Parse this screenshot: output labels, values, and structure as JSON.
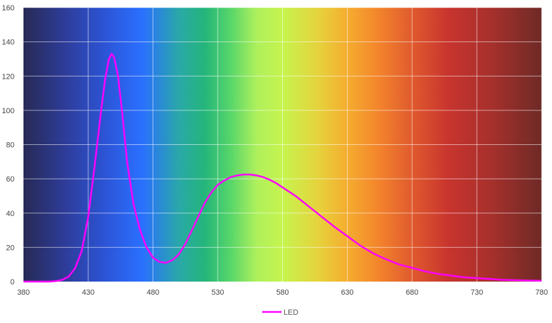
{
  "chart_data": {
    "type": "line",
    "title": "",
    "xlabel": "",
    "ylabel": "",
    "xlim": [
      380,
      780
    ],
    "ylim": [
      0,
      160
    ],
    "x_ticks": [
      380,
      430,
      480,
      530,
      580,
      630,
      680,
      730,
      780
    ],
    "y_ticks": [
      0,
      20,
      40,
      60,
      80,
      100,
      120,
      140,
      160
    ],
    "grid": true,
    "background": "visible-spectrum-gradient",
    "legend_position": "bottom-center",
    "series": [
      {
        "name": "LED",
        "color": "#ff00ff",
        "points": [
          [
            380,
            0
          ],
          [
            390,
            0
          ],
          [
            400,
            0
          ],
          [
            405,
            0.3
          ],
          [
            410,
            1
          ],
          [
            415,
            3
          ],
          [
            420,
            8
          ],
          [
            425,
            18
          ],
          [
            430,
            38
          ],
          [
            435,
            68
          ],
          [
            440,
            100
          ],
          [
            443,
            118
          ],
          [
            446,
            130
          ],
          [
            448,
            133
          ],
          [
            450,
            131
          ],
          [
            453,
            120
          ],
          [
            456,
            100
          ],
          [
            460,
            70
          ],
          [
            465,
            45
          ],
          [
            470,
            30
          ],
          [
            475,
            20
          ],
          [
            480,
            14
          ],
          [
            485,
            11.5
          ],
          [
            490,
            11
          ],
          [
            495,
            12.5
          ],
          [
            500,
            16
          ],
          [
            505,
            22
          ],
          [
            510,
            30
          ],
          [
            515,
            38
          ],
          [
            520,
            46
          ],
          [
            525,
            52
          ],
          [
            530,
            56.5
          ],
          [
            535,
            59
          ],
          [
            540,
            61
          ],
          [
            545,
            62
          ],
          [
            550,
            62.5
          ],
          [
            555,
            62.5
          ],
          [
            560,
            62
          ],
          [
            565,
            61
          ],
          [
            570,
            59.5
          ],
          [
            575,
            57.5
          ],
          [
            580,
            55
          ],
          [
            590,
            50
          ],
          [
            600,
            44
          ],
          [
            610,
            38
          ],
          [
            620,
            32
          ],
          [
            630,
            26.5
          ],
          [
            640,
            21
          ],
          [
            650,
            16.5
          ],
          [
            660,
            13
          ],
          [
            670,
            10
          ],
          [
            680,
            8
          ],
          [
            690,
            6
          ],
          [
            700,
            4.5
          ],
          [
            710,
            3.5
          ],
          [
            720,
            2.5
          ],
          [
            730,
            2
          ],
          [
            740,
            1.5
          ],
          [
            750,
            1
          ],
          [
            760,
            0.8
          ],
          [
            770,
            0.6
          ],
          [
            780,
            0.5
          ]
        ]
      }
    ]
  }
}
